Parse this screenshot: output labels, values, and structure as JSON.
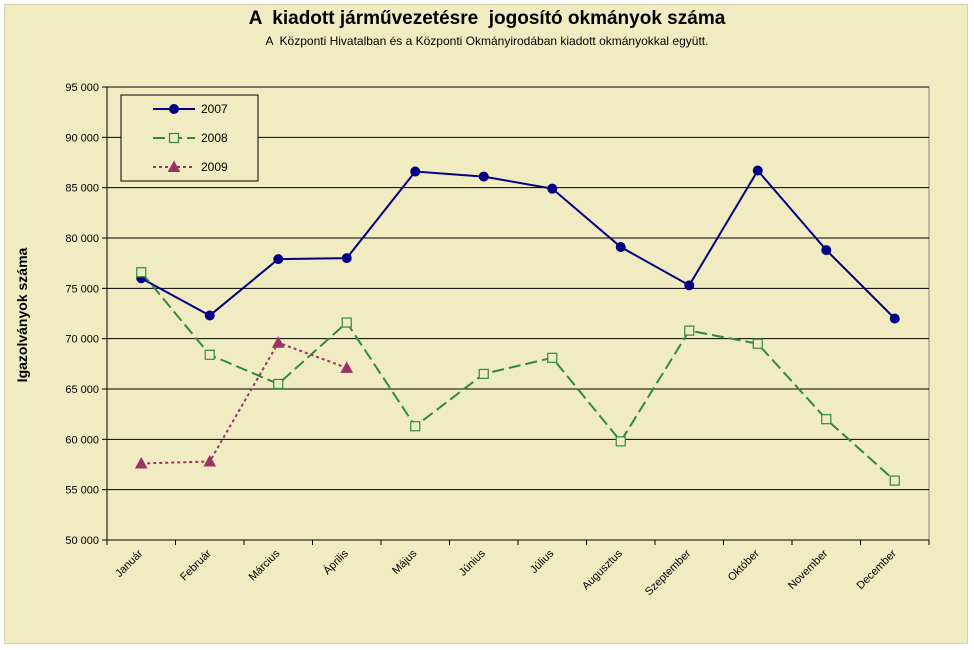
{
  "chart_data": {
    "type": "line",
    "title": "A  kiadott járművezetésre  jogosító okmányok száma",
    "subtitle": "A  Központi Hivatalban és a Központi Okmányirodában kiadott okmányokkal együtt.",
    "ylabel": "Igazolványok száma",
    "xlabel": "",
    "ylim": [
      50000,
      95000
    ],
    "yticks": [
      50000,
      55000,
      60000,
      65000,
      70000,
      75000,
      80000,
      85000,
      90000,
      95000
    ],
    "ytick_labels": [
      "50 000",
      "55 000",
      "60 000",
      "65 000",
      "70 000",
      "75 000",
      "80 000",
      "85 000",
      "90 000",
      "95 000"
    ],
    "grid": true,
    "legend_position": "top-left",
    "categories": [
      "Január",
      "Február",
      "Március",
      "Április",
      "Május",
      "Június",
      "Július",
      "Augusztus",
      "Szeptember",
      "Október",
      "November",
      "December"
    ],
    "series": [
      {
        "name": "2007",
        "color": "#000080",
        "marker": "circle",
        "line_style": "solid",
        "values": [
          76000,
          72300,
          77900,
          78000,
          86600,
          86100,
          84900,
          79100,
          75300,
          86700,
          78800,
          72000
        ]
      },
      {
        "name": "2008",
        "color": "#2e8b3e",
        "marker": "square-open",
        "line_style": "dashed",
        "values": [
          76600,
          68400,
          65500,
          71600,
          61300,
          66500,
          68100,
          59800,
          70800,
          69500,
          62000,
          55900
        ]
      },
      {
        "name": "2009",
        "color": "#993366",
        "marker": "triangle",
        "line_style": "dotted",
        "values": [
          57600,
          57800,
          69600,
          67100,
          null,
          null,
          null,
          null,
          null,
          null,
          null,
          null
        ]
      }
    ]
  }
}
